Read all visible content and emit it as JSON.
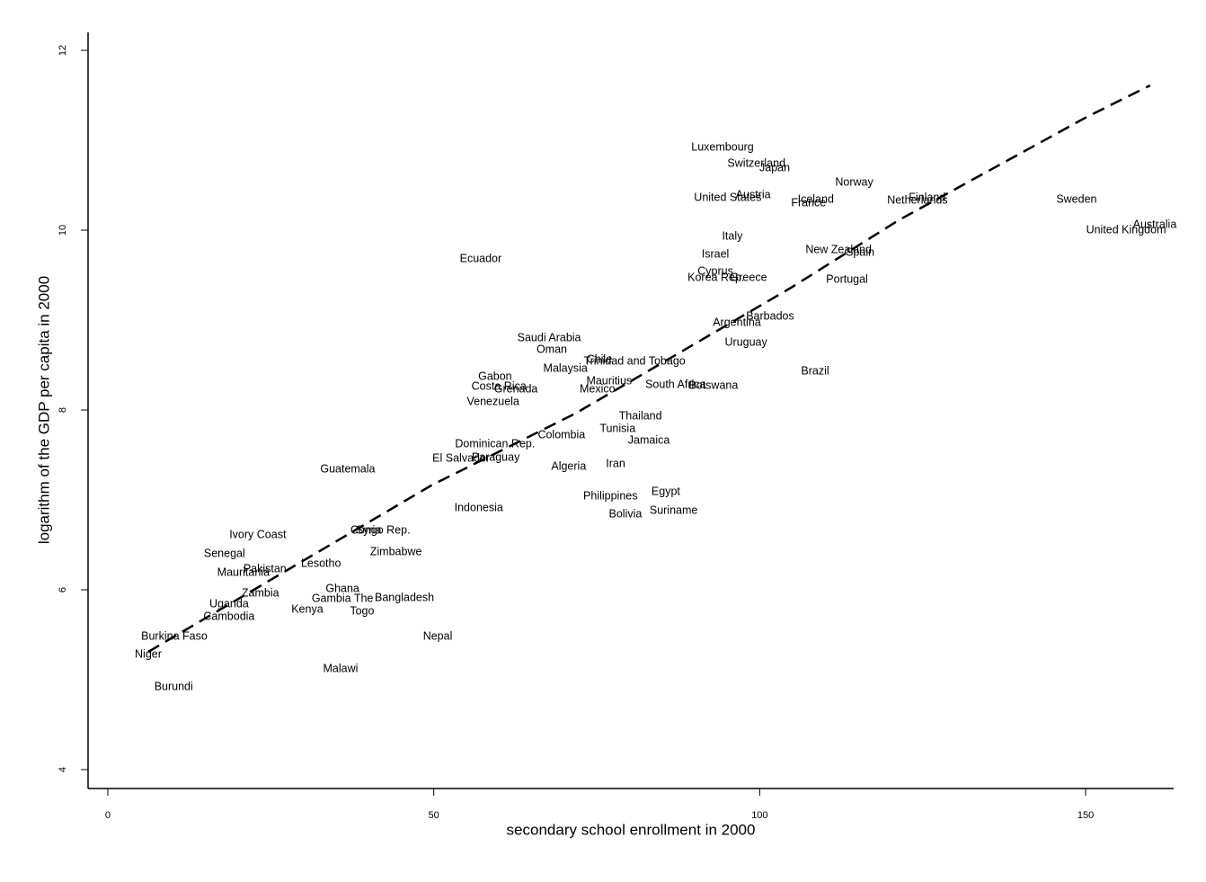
{
  "chart_data": {
    "type": "scatter",
    "xlabel": "secondary school enrollment in 2000",
    "ylabel": "logarithm of the GDP per capita in 2000",
    "xlim": [
      -3.03,
      163.5
    ],
    "ylim": [
      3.79,
      12.2
    ],
    "xticks": [
      0,
      50,
      100,
      150
    ],
    "yticks": [
      4,
      6,
      8,
      10,
      12
    ],
    "grid": false,
    "color": "#000000",
    "points": {
      "labels": [
        "Luxembourg",
        "Switzerland",
        "Japan",
        "Norway",
        "United States",
        "Austria",
        "Iceland",
        "France",
        "Finland",
        "Netherlands",
        "Sweden",
        "Australia",
        "United Kingdom",
        "Ecuador",
        "Italy",
        "Israel",
        "New Zealand",
        "Spain",
        "Cyprus",
        "Korea Rep.",
        "Greece",
        "Portugal",
        "Barbados",
        "Argentina",
        "Uruguay",
        "Saudi Arabia",
        "Oman",
        "Chile",
        "Trinidad and Tobago",
        "Malaysia",
        "Brazil",
        "Gabon",
        "Costa Rica",
        "Grenada",
        "Mauritius",
        "Mexico",
        "South Africa",
        "Botswana",
        "Venezuela",
        "Thailand",
        "Tunisia",
        "Colombia",
        "Jamaica",
        "Dominican Rep.",
        "El Salvador",
        "Paraguay",
        "Algeria",
        "Iran",
        "Guatemala",
        "Philippines",
        "Egypt",
        "Indonesia",
        "Bolivia",
        "Suriname",
        "Congo Rep.",
        "Syria",
        "Ivory Coast",
        "Zimbabwe",
        "Senegal",
        "Lesotho",
        "Pakistan",
        "Mauritania",
        "Ghana",
        "Zambia",
        "Gambia The",
        "Bangladesh",
        "Uganda",
        "Kenya",
        "Togo",
        "Cambodia",
        "Burkina Faso",
        "Nepal",
        "Niger",
        "Malawi",
        "Burundi"
      ],
      "x": [
        94.3,
        99.5,
        102.3,
        114.5,
        95.1,
        99.0,
        108.6,
        107.5,
        125.7,
        124.2,
        148.6,
        160.6,
        156.2,
        57.2,
        95.8,
        93.2,
        112.1,
        115.4,
        93.2,
        93.3,
        98.3,
        113.4,
        101.6,
        96.5,
        97.9,
        67.7,
        68.1,
        75.4,
        80.8,
        70.2,
        108.5,
        59.4,
        60.0,
        62.6,
        76.9,
        75.1,
        87.1,
        92.9,
        59.1,
        81.7,
        78.2,
        69.6,
        83.0,
        59.4,
        54.2,
        59.5,
        70.7,
        77.9,
        36.8,
        77.1,
        85.6,
        56.9,
        79.4,
        86.8,
        41.8,
        40.0,
        23.0,
        44.2,
        17.9,
        32.7,
        24.1,
        20.8,
        36.0,
        23.4,
        36.0,
        45.5,
        18.6,
        30.6,
        39.0,
        18.6,
        10.2,
        50.6,
        6.2,
        35.7,
        10.1
      ],
      "y": [
        10.92,
        10.74,
        10.69,
        10.53,
        10.36,
        10.39,
        10.34,
        10.3,
        10.36,
        10.33,
        10.34,
        10.06,
        10.0,
        9.68,
        9.93,
        9.73,
        9.78,
        9.75,
        9.54,
        9.47,
        9.47,
        9.45,
        9.04,
        8.97,
        8.75,
        8.8,
        8.67,
        8.56,
        8.54,
        8.46,
        8.43,
        8.37,
        8.26,
        8.23,
        8.32,
        8.23,
        8.28,
        8.27,
        8.09,
        7.93,
        7.79,
        7.72,
        7.66,
        7.62,
        7.46,
        7.47,
        7.37,
        7.4,
        7.34,
        7.04,
        7.09,
        6.91,
        6.84,
        6.88,
        6.66,
        6.66,
        6.61,
        6.42,
        6.4,
        6.29,
        6.23,
        6.19,
        6.01,
        5.96,
        5.9,
        5.91,
        5.84,
        5.78,
        5.76,
        5.7,
        5.48,
        5.48,
        5.28,
        5.12,
        4.92
      ]
    },
    "fit": {
      "x": [
        6.2,
        49.6,
        71.7,
        104.8,
        121.3,
        150.2,
        159.9
      ],
      "y": [
        5.31,
        7.16,
        7.96,
        9.36,
        10.11,
        11.26,
        11.61
      ]
    }
  }
}
